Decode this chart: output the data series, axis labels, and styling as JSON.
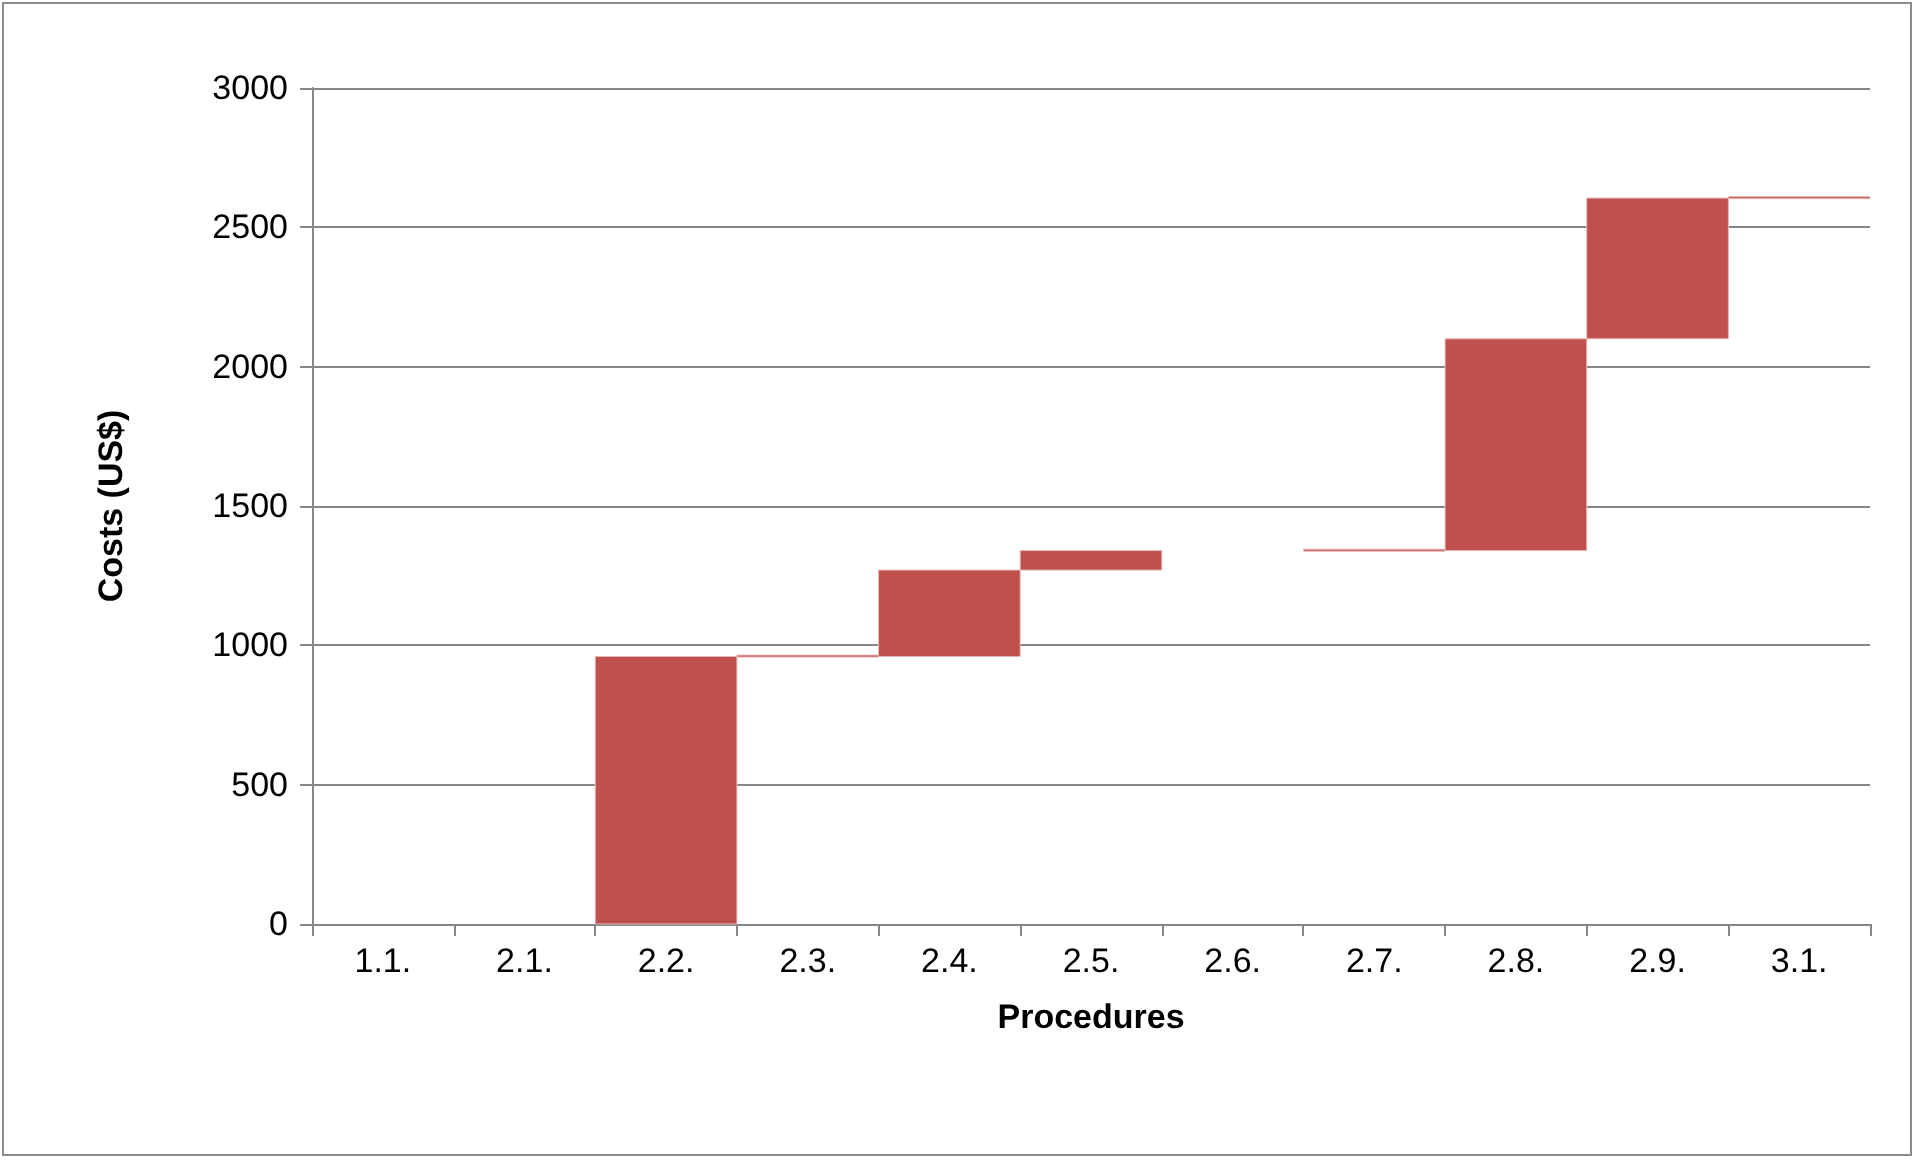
{
  "chart_data": {
    "type": "bar",
    "xlabel": "Procedures",
    "ylabel": "Costs (US$)",
    "categories": [
      "1.1.",
      "2.1.",
      "2.2.",
      "2.3.",
      "2.4.",
      "2.5.",
      "2.6.",
      "2.7.",
      "2.8.",
      "2.9.",
      "3.1."
    ],
    "values": [
      null,
      null,
      960,
      5,
      310,
      70,
      null,
      5,
      760,
      505,
      5
    ],
    "base": [
      null,
      null,
      0,
      960,
      960,
      1270,
      null,
      1340,
      1340,
      2100,
      2605
    ],
    "color": "#c0504d",
    "ylim": [
      0,
      3000
    ],
    "yticks": [
      0,
      500,
      1000,
      1500,
      2000,
      2500,
      3000
    ],
    "grid": "y"
  }
}
